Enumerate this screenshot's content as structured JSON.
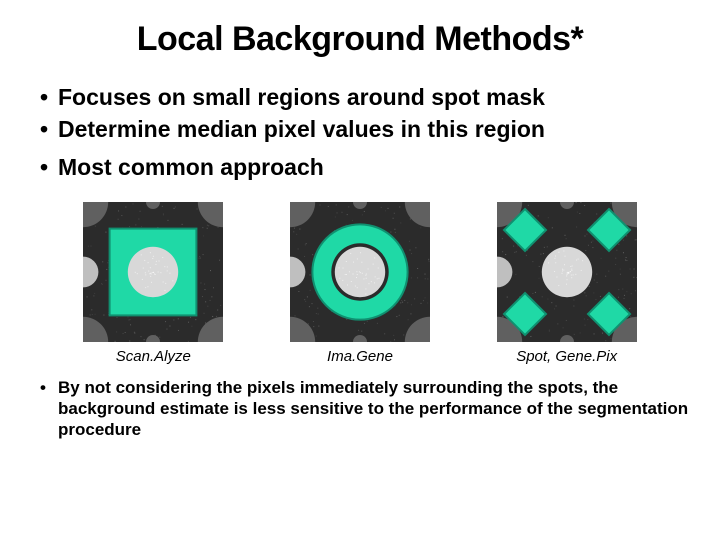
{
  "title": "Local Background Methods*",
  "bullets_top": [
    "Focuses on small regions around spot mask",
    "Determine median pixel values in this region",
    "Most common approach"
  ],
  "bullets_bottom": [
    "By not considering the pixels immediately surrounding the spots, the background estimate is less sensitive to the performance of the segmentation procedure"
  ],
  "figures": [
    {
      "caption": "Scan.Alyze",
      "type": "square"
    },
    {
      "caption": "Ima.Gene",
      "type": "ring"
    },
    {
      "caption": "Spot, Gene.Pix",
      "type": "diamonds"
    }
  ],
  "style": {
    "panel_size": 140,
    "bg_dark": "#2b2b2b",
    "spot_fill": "#d8d8d8",
    "corner_spot_fill": "#606060",
    "highlight": "#1fd9a6",
    "highlight_stroke": "#109070",
    "notch_fill": "#bfbfbf",
    "title_fontsize": 34,
    "bullet_top_fontsize": 23,
    "bullet_bottom_fontsize": 17,
    "caption_fontsize": 15
  }
}
